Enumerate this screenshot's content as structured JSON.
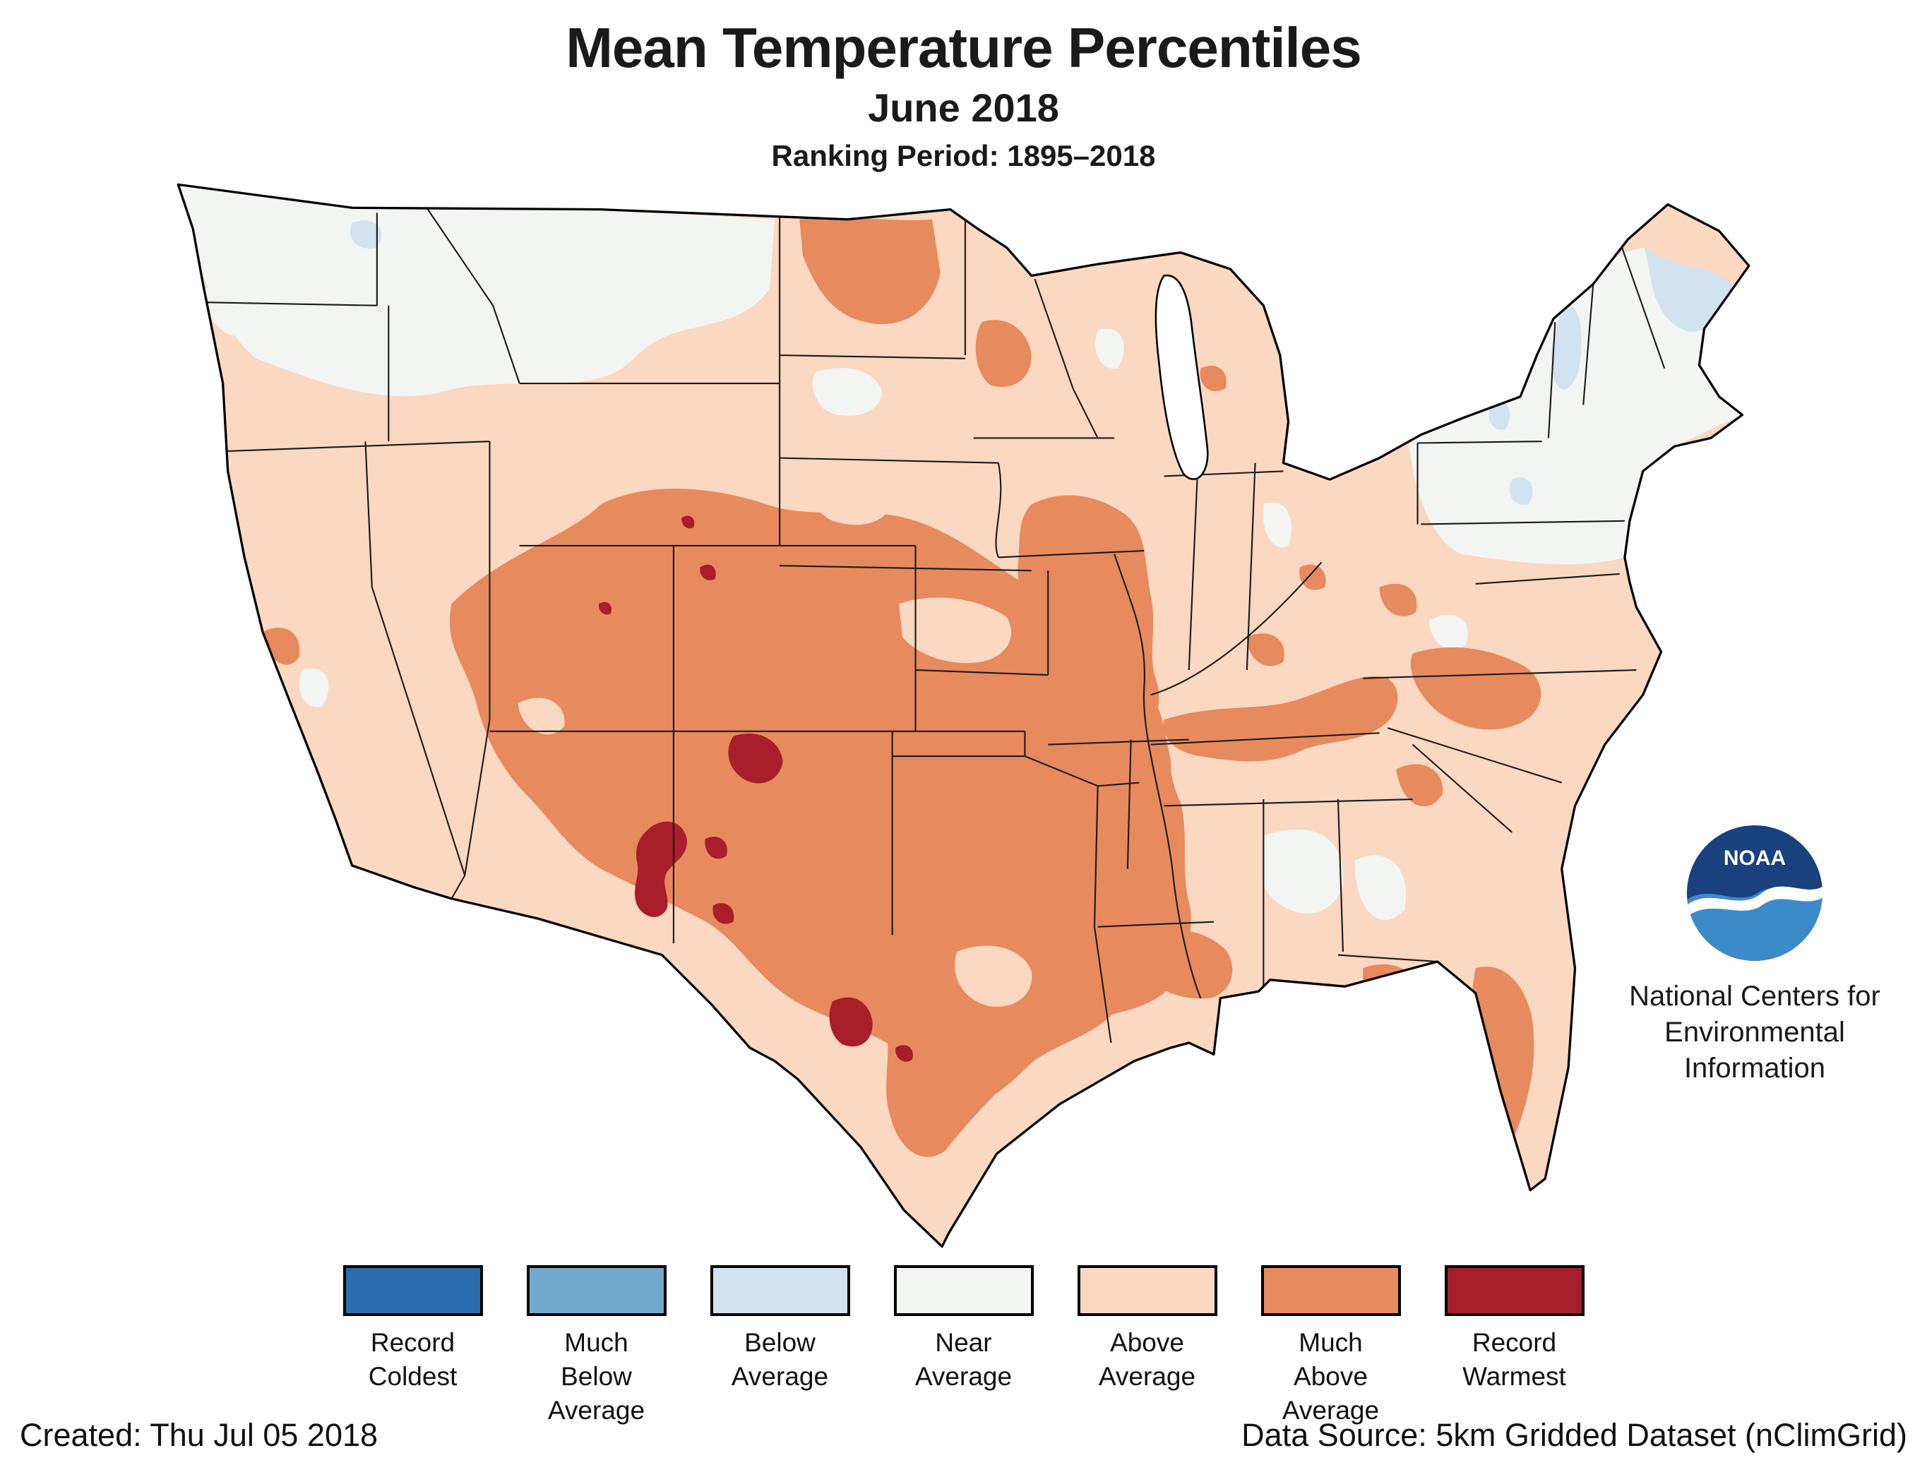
{
  "header": {
    "title": "Mean Temperature Percentiles",
    "subtitle": "June 2018",
    "ranking_period": "Ranking Period: 1895–2018"
  },
  "logo": {
    "text": "NOAA",
    "caption_lines": [
      "National Centers for",
      "Environmental",
      "Information"
    ]
  },
  "legend": {
    "items": [
      {
        "id": "record-coldest",
        "lines": [
          "Record",
          "Coldest"
        ],
        "color": "#2a6cac"
      },
      {
        "id": "much-below-average",
        "lines": [
          "Much",
          "Below",
          "Average"
        ],
        "color": "#72aacd"
      },
      {
        "id": "below-average",
        "lines": [
          "Below",
          "Average"
        ],
        "color": "#d2e2ee"
      },
      {
        "id": "near-average",
        "lines": [
          "Near",
          "Average"
        ],
        "color": "#f3f5f3"
      },
      {
        "id": "above-average",
        "lines": [
          "Above",
          "Average"
        ],
        "color": "#fad8c1"
      },
      {
        "id": "much-above-average",
        "lines": [
          "Much",
          "Above",
          "Average"
        ],
        "color": "#e78a5e"
      },
      {
        "id": "record-warmest",
        "lines": [
          "Record",
          "Warmest"
        ],
        "color": "#a81e2a"
      }
    ]
  },
  "footer": {
    "created": "Created: Thu Jul 05 2018",
    "data_source": "Data Source: 5km Gridded Dataset (nClimGrid)"
  }
}
